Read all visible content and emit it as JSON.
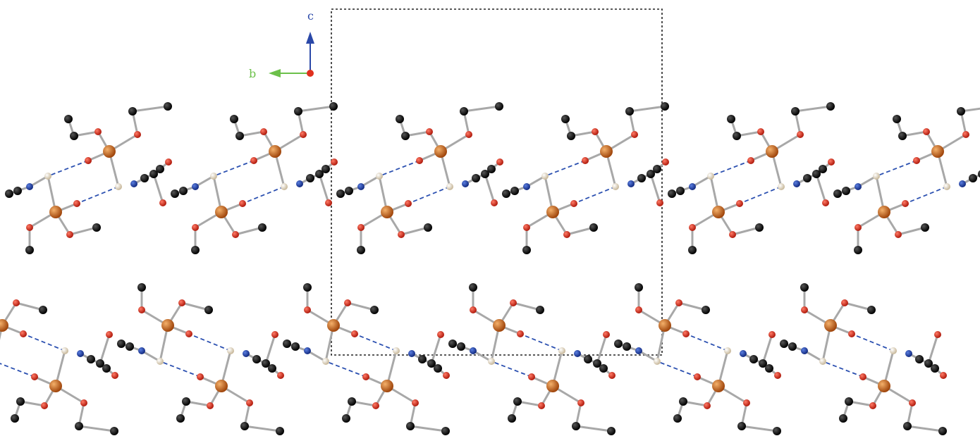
{
  "axes": {
    "c": {
      "label": "c",
      "color": "#2a48a8"
    },
    "b": {
      "label": "b",
      "color": "#6cc04a"
    },
    "origin_color": "#e0301e"
  },
  "colors": {
    "metal": "#c8641a",
    "oxygen": "#d42a1a",
    "carbon": "#111111",
    "nitrogen": "#1f44b0",
    "hydrogen": "#e8dcc4",
    "bond": "#a8a8a8",
    "hbond": "#2a4fb0",
    "cell": "#222222"
  }
}
